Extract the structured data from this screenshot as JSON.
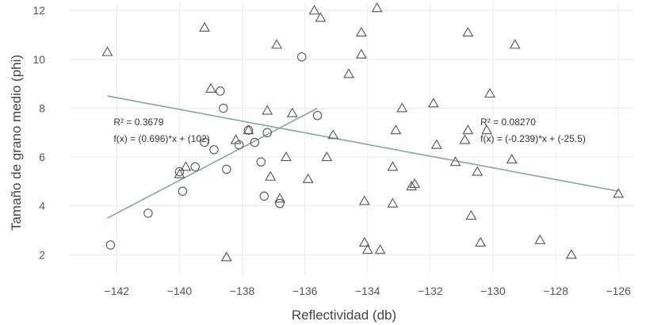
{
  "chart_data": {
    "type": "scatter",
    "xlabel": "Reflectividad (db)",
    "ylabel": "Tamaño de grano medio (phi)",
    "xlim": [
      -143.5,
      -125.5
    ],
    "ylim": [
      1.2,
      12.3
    ],
    "x_ticks": [
      -142,
      -140,
      -138,
      -136,
      -134,
      -132,
      -130,
      -128,
      -126
    ],
    "y_ticks": [
      2,
      4,
      6,
      8,
      10,
      12
    ],
    "grid": true,
    "series": [
      {
        "marker": "circle",
        "x": [
          -142.2,
          -141.0,
          -140.0,
          -139.9,
          -139.5,
          -139.2,
          -138.9,
          -138.7,
          -138.6,
          -138.5,
          -138.1,
          -137.8,
          -137.6,
          -137.4,
          -137.3,
          -137.2,
          -136.8,
          -136.1,
          -135.6
        ],
        "y": [
          2.4,
          3.7,
          5.4,
          4.6,
          5.6,
          6.6,
          6.3,
          8.7,
          8.0,
          5.5,
          6.5,
          7.1,
          6.6,
          5.8,
          4.4,
          7.0,
          4.1,
          10.1,
          7.7
        ]
      },
      {
        "marker": "triangle",
        "x": [
          -142.3,
          -140.0,
          -139.8,
          -139.2,
          -139.0,
          -138.5,
          -138.2,
          -137.8,
          -137.2,
          -137.1,
          -136.9,
          -136.8,
          -136.6,
          -136.4,
          -135.9,
          -135.7,
          -135.5,
          -135.3,
          -135.1,
          -134.6,
          -134.2,
          -134.2,
          -134.1,
          -134.1,
          -134.0,
          -133.7,
          -133.6,
          -133.2,
          -133.2,
          -133.1,
          -132.9,
          -132.6,
          -132.5,
          -131.9,
          -131.8,
          -131.2,
          -130.9,
          -130.8,
          -130.8,
          -130.7,
          -130.5,
          -130.4,
          -130.2,
          -130.1,
          -129.4,
          -129.3,
          -128.5,
          -127.5,
          -126.0
        ],
        "y": [
          10.3,
          5.3,
          5.6,
          11.3,
          8.8,
          1.9,
          6.7,
          7.1,
          7.9,
          5.2,
          10.6,
          4.3,
          6.0,
          7.8,
          5.1,
          12.0,
          11.7,
          6.0,
          6.9,
          9.4,
          11.1,
          10.2,
          2.5,
          4.2,
          2.2,
          12.1,
          2.2,
          4.1,
          5.6,
          7.1,
          8.0,
          4.8,
          4.9,
          8.2,
          6.5,
          5.8,
          6.7,
          7.1,
          11.1,
          3.6,
          5.4,
          2.5,
          7.1,
          8.6,
          5.9,
          10.6,
          2.6,
          2.0,
          4.5
        ]
      }
    ],
    "trendlines": [
      {
        "x": [
          -142.3,
          -135.6
        ],
        "y": [
          3.5,
          8.0
        ]
      },
      {
        "x": [
          -142.3,
          -126.0
        ],
        "y": [
          8.5,
          4.6
        ]
      }
    ],
    "annotations": [
      {
        "lines": [
          "R² = 0.3679",
          "f(x) = (0.696)*x + (102)"
        ],
        "x": -142.1,
        "y": 6.65
      },
      {
        "lines": [
          "R² = 0.08270",
          "f(x) = (-0.239)*x + (-25.5)"
        ],
        "x": -130.4,
        "y": 6.65
      }
    ]
  }
}
